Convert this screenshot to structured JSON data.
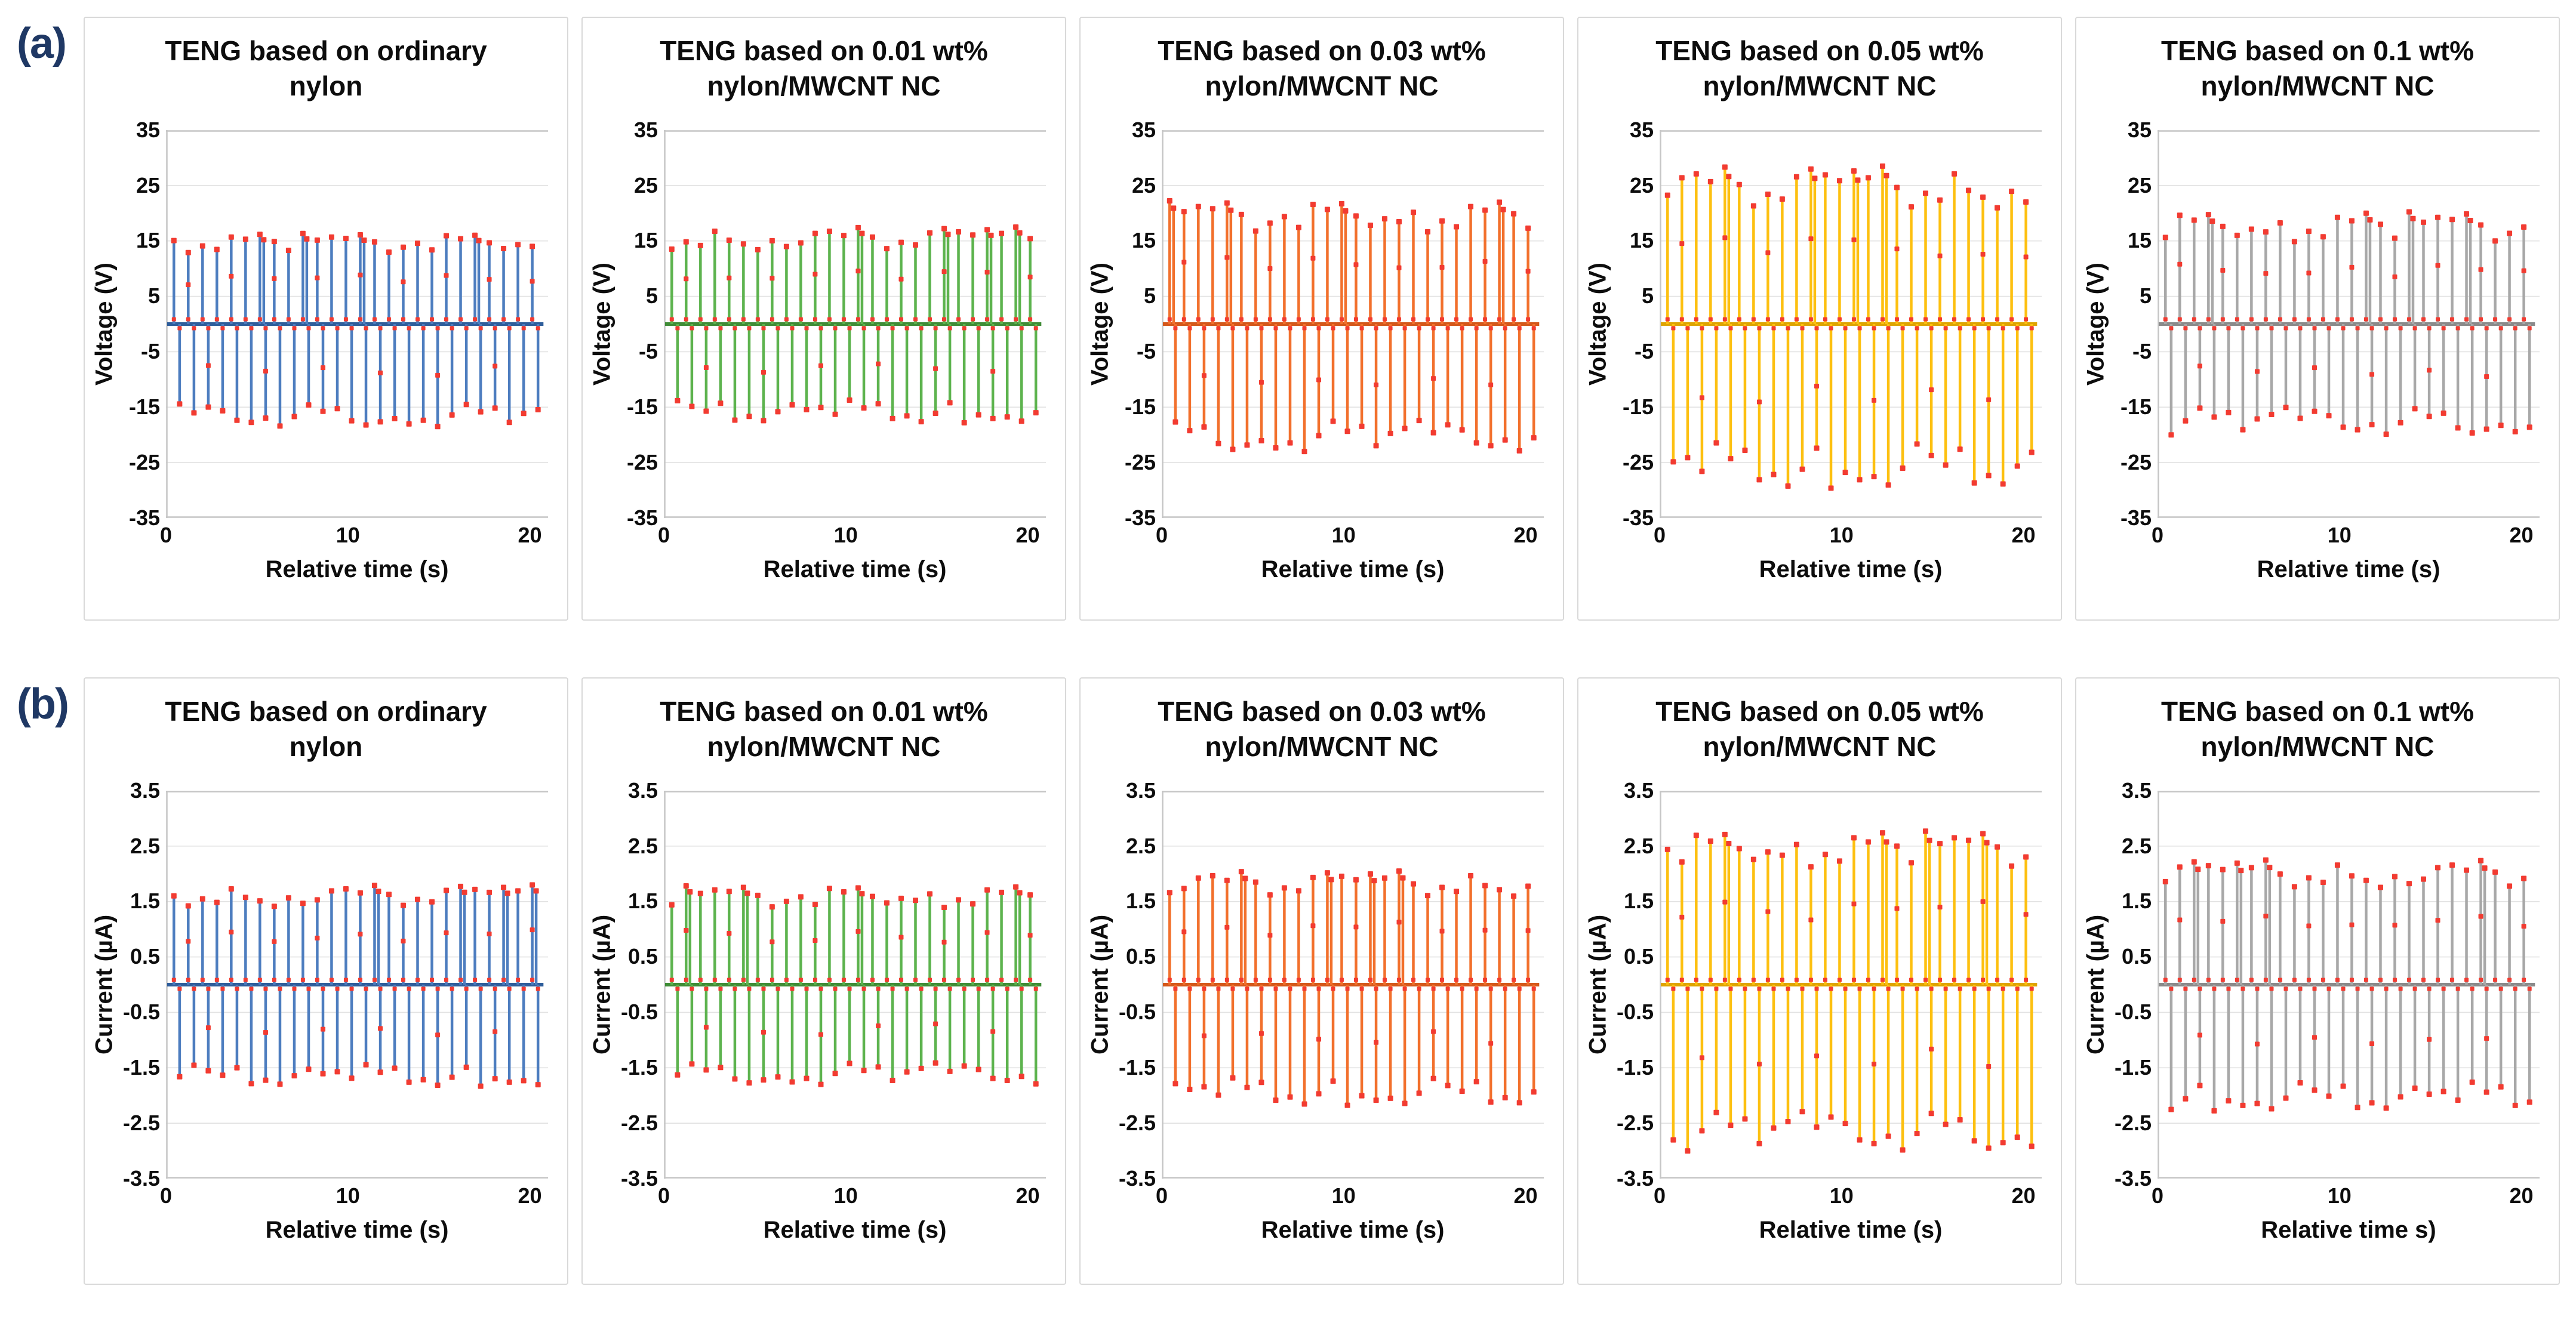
{
  "figure": {
    "letters": [
      "(a)",
      "(b)"
    ],
    "letter_color": "#1f3864"
  },
  "chart_data": {
    "type": "line",
    "description": "Stem-like line charts with red square markers showing alternating positive/negative output peaks of TENG devices",
    "x_domain": [
      0,
      21
    ],
    "x_ticks": [
      0,
      10,
      20
    ],
    "marker_color": "#f23b31",
    "grid_color": "#e2e2e2",
    "plot_border_color": "#c6c6c6",
    "pattern": [
      0.82,
      0.95,
      0.55,
      0.88,
      0.7,
      1.0,
      0.62,
      0.78,
      0.9,
      0.58,
      0.85,
      0.72,
      0.96,
      0.65,
      0.8,
      0.92,
      0.6,
      0.75,
      0.98,
      0.68,
      0.83,
      0.57,
      0.9,
      0.74,
      0.87,
      0.63,
      0.95,
      0.7,
      0.79,
      0.88,
      0.56,
      0.92,
      0.67,
      0.84,
      0.76,
      0.99,
      0.61,
      0.81,
      0.93,
      0.59,
      0.86,
      0.71,
      0.94,
      0.66,
      0.77,
      0.89,
      0.64,
      0.97,
      0.73,
      0.91,
      0.69,
      0.85
    ],
    "cycles": 26,
    "rows": [
      {
        "id": "a",
        "ylabel": "Voltage (V)",
        "y_max": 35,
        "y_ticks": [
          35,
          25,
          15,
          5,
          -5,
          -15,
          -25,
          -35
        ],
        "default_xlabel": "Relative time (s)",
        "panels": [
          {
            "title_lines": [
              "TENG based on ordinary",
              "nylon"
            ],
            "color": "#4d7dbf",
            "baseline_color": "#2e5d9b",
            "pos_range": [
              8.5,
              16.5
            ],
            "neg_range": [
              9.0,
              18.5
            ],
            "off_pos": 0,
            "off_neg": 21
          },
          {
            "title_lines": [
              "TENG based on 0.01 wt%",
              "nylon/MWCNT NC"
            ],
            "color": "#5db34e",
            "baseline_color": "#3f8c36",
            "pos_range": [
              8.0,
              17.5
            ],
            "neg_range": [
              8.5,
              18.0
            ],
            "off_pos": 9,
            "off_neg": 30
          },
          {
            "title_lines": [
              "TENG based on 0.03 wt%",
              "nylon/MWCNT NC"
            ],
            "color": "#f2702c",
            "baseline_color": "#d4571a",
            "pos_range": [
              9.5,
              22.5
            ],
            "neg_range": [
              10.0,
              23.0
            ],
            "off_pos": 18,
            "off_neg": 39
          },
          {
            "title_lines": [
              "TENG based on 0.05 wt%",
              "nylon/MWCNT NC"
            ],
            "color": "#fdc010",
            "baseline_color": "#dea400",
            "pos_range": [
              11.0,
              28.5
            ],
            "neg_range": [
              11.0,
              30.0
            ],
            "off_pos": 27,
            "off_neg": 48
          },
          {
            "title_lines": [
              "TENG based on 0.1 wt%",
              "nylon/MWCNT NC"
            ],
            "color": "#a8a8a8",
            "baseline_color": "#8a8a8a",
            "pos_range": [
              8.0,
              20.5
            ],
            "neg_range": [
              8.5,
              20.0
            ],
            "off_pos": 36,
            "off_neg": 5
          }
        ]
      },
      {
        "id": "b",
        "ylabel": "Current (µA)",
        "y_max": 3.5,
        "y_ticks": [
          3.5,
          2.5,
          1.5,
          0.5,
          -0.5,
          -1.5,
          -2.5,
          -3.5
        ],
        "default_xlabel": "Relative time (s)",
        "panels": [
          {
            "title_lines": [
              "TENG based on ordinary",
              "nylon"
            ],
            "color": "#4d7dbf",
            "baseline_color": "#2e5d9b",
            "pos_range": [
              0.9,
              1.8
            ],
            "neg_range": [
              0.95,
              1.85
            ],
            "off_pos": 7,
            "off_neg": 28
          },
          {
            "title_lines": [
              "TENG based on 0.01 wt%",
              "nylon/MWCNT NC"
            ],
            "color": "#5db34e",
            "baseline_color": "#3f8c36",
            "pos_range": [
              0.9,
              1.8
            ],
            "neg_range": [
              0.9,
              1.8
            ],
            "off_pos": 16,
            "off_neg": 37
          },
          {
            "title_lines": [
              "TENG based on 0.03 wt%",
              "nylon/MWCNT NC"
            ],
            "color": "#f2702c",
            "baseline_color": "#d4571a",
            "pos_range": [
              1.0,
              2.05
            ],
            "neg_range": [
              1.05,
              2.2
            ],
            "off_pos": 25,
            "off_neg": 46
          },
          {
            "title_lines": [
              "TENG based on 0.05 wt%",
              "nylon/MWCNT NC"
            ],
            "color": "#fdc010",
            "baseline_color": "#dea400",
            "pos_range": [
              1.3,
              2.8
            ],
            "neg_range": [
              1.35,
              3.0
            ],
            "off_pos": 34,
            "off_neg": 3
          },
          {
            "title_lines": [
              "TENG based on 0.1 wt%",
              "nylon/MWCNT NC"
            ],
            "color": "#a8a8a8",
            "baseline_color": "#8a8a8a",
            "pos_range": [
              1.1,
              2.25
            ],
            "neg_range": [
              1.1,
              2.3
            ],
            "off_pos": 43,
            "off_neg": 12,
            "xlabel": "Relative time s)"
          }
        ]
      }
    ]
  }
}
